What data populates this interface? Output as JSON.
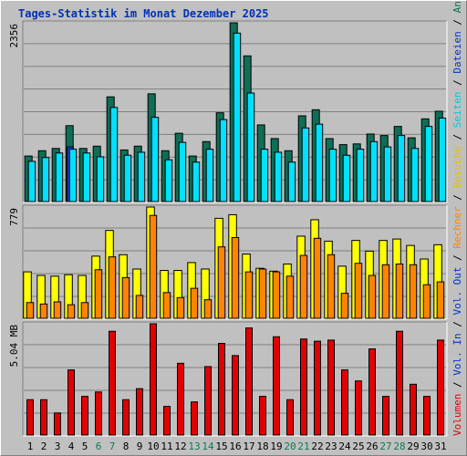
{
  "title": "Tages-Statistik im Monat Dezember 2025",
  "colors": {
    "hits": "#0f6e55",
    "files": "#00e0ff",
    "pages": "#1b40d8",
    "visits": "#ffff00",
    "sites": "#ff8400",
    "kbytes": "#e00000",
    "weekend_label": "#0d7a55",
    "weekday_label": "#000000",
    "sep": "#000000"
  },
  "right_legend_top": [
    {
      "text": "Anfragen",
      "color": "#0f6e55"
    },
    {
      "text": " / ",
      "color": "#000000"
    },
    {
      "text": "Dateien",
      "color": "#0033cc"
    },
    {
      "text": " / ",
      "color": "#000000"
    },
    {
      "text": "Seiten",
      "color": "#00c8e0"
    },
    {
      "text": " / ",
      "color": "#000000"
    },
    {
      "text": "Besuche",
      "color": "#e0c000"
    },
    {
      "text": " / ",
      "color": "#000000"
    },
    {
      "text": "Rechner",
      "color": "#ff8400"
    },
    {
      "text": " / ",
      "color": "#000000"
    },
    {
      "text": "Vol. Out",
      "color": "#0033cc"
    },
    {
      "text": " / ",
      "color": "#000000"
    },
    {
      "text": "Vol. In",
      "color": "#0033cc"
    },
    {
      "text": " / ",
      "color": "#000000"
    },
    {
      "text": "Volumen",
      "color": "#e00000"
    }
  ],
  "chart_data": [
    {
      "type": "bar",
      "panel": "requests",
      "ylabel": "2356",
      "ylim": [
        0,
        2356
      ],
      "grid": true,
      "categories": [
        "1",
        "2",
        "3",
        "4",
        "5",
        "6",
        "7",
        "8",
        "9",
        "10",
        "11",
        "12",
        "13",
        "14",
        "15",
        "16",
        "17",
        "18",
        "19",
        "20",
        "21",
        "22",
        "23",
        "24",
        "25",
        "26",
        "27",
        "28",
        "29",
        "30",
        "31"
      ],
      "weekend_days": [
        "6",
        "7",
        "13",
        "14",
        "20",
        "21",
        "27",
        "28"
      ],
      "series": [
        {
          "name": "Anfragen",
          "values": [
            600,
            670,
            700,
            1000,
            700,
            730,
            1380,
            680,
            730,
            1420,
            670,
            900,
            600,
            790,
            1170,
            2356,
            1920,
            1010,
            830,
            670,
            1130,
            1210,
            830,
            750,
            760,
            890,
            870,
            990,
            840,
            1090,
            1190
          ]
        },
        {
          "name": "Dateien",
          "values": [
            530,
            580,
            640,
            690,
            640,
            590,
            1240,
            610,
            650,
            1110,
            550,
            780,
            520,
            690,
            1080,
            2220,
            1430,
            690,
            650,
            520,
            970,
            1020,
            690,
            610,
            690,
            790,
            720,
            870,
            700,
            990,
            1100
          ]
        },
        {
          "name": "Seiten",
          "values": [
            0,
            0,
            0,
            720,
            0,
            0,
            0,
            0,
            0,
            0,
            0,
            0,
            0,
            0,
            0,
            0,
            0,
            0,
            0,
            0,
            0,
            0,
            0,
            0,
            0,
            0,
            0,
            0,
            0,
            0,
            0
          ]
        }
      ]
    },
    {
      "type": "bar",
      "panel": "visits",
      "ylabel": "779",
      "ylim": [
        0,
        779
      ],
      "grid": true,
      "categories": [
        "1",
        "2",
        "3",
        "4",
        "5",
        "6",
        "7",
        "8",
        "9",
        "10",
        "11",
        "12",
        "13",
        "14",
        "15",
        "16",
        "17",
        "18",
        "19",
        "20",
        "21",
        "22",
        "23",
        "24",
        "25",
        "26",
        "27",
        "28",
        "29",
        "30",
        "31"
      ],
      "series": [
        {
          "name": "Besuche",
          "values": [
            325,
            300,
            295,
            305,
            300,
            435,
            615,
            445,
            345,
            779,
            335,
            335,
            390,
            345,
            700,
            725,
            450,
            350,
            330,
            380,
            575,
            690,
            540,
            365,
            545,
            470,
            545,
            555,
            510,
            415,
            515
          ]
        },
        {
          "name": "Rechner",
          "values": [
            110,
            100,
            115,
            95,
            110,
            340,
            430,
            285,
            160,
            720,
            180,
            145,
            210,
            130,
            500,
            565,
            325,
            345,
            325,
            295,
            440,
            560,
            445,
            175,
            385,
            300,
            375,
            380,
            375,
            235,
            255
          ]
        }
      ]
    },
    {
      "type": "bar",
      "panel": "volume",
      "ylabel": "5.04 MB",
      "ylim": [
        0,
        5.04
      ],
      "grid": true,
      "categories": [
        "1",
        "2",
        "3",
        "4",
        "5",
        "6",
        "7",
        "8",
        "9",
        "10",
        "11",
        "12",
        "13",
        "14",
        "15",
        "16",
        "17",
        "18",
        "19",
        "20",
        "21",
        "22",
        "23",
        "24",
        "25",
        "26",
        "27",
        "28",
        "29",
        "30",
        "31"
      ],
      "series": [
        {
          "name": "Volumen",
          "values": [
            1.6,
            1.6,
            1.0,
            2.95,
            1.75,
            1.95,
            4.7,
            1.6,
            2.1,
            5.04,
            1.3,
            3.25,
            1.5,
            3.1,
            4.15,
            3.6,
            4.85,
            1.75,
            4.45,
            1.6,
            4.35,
            4.25,
            4.3,
            2.95,
            2.45,
            3.9,
            1.75,
            4.7,
            2.3,
            1.75,
            4.3
          ]
        }
      ]
    }
  ]
}
